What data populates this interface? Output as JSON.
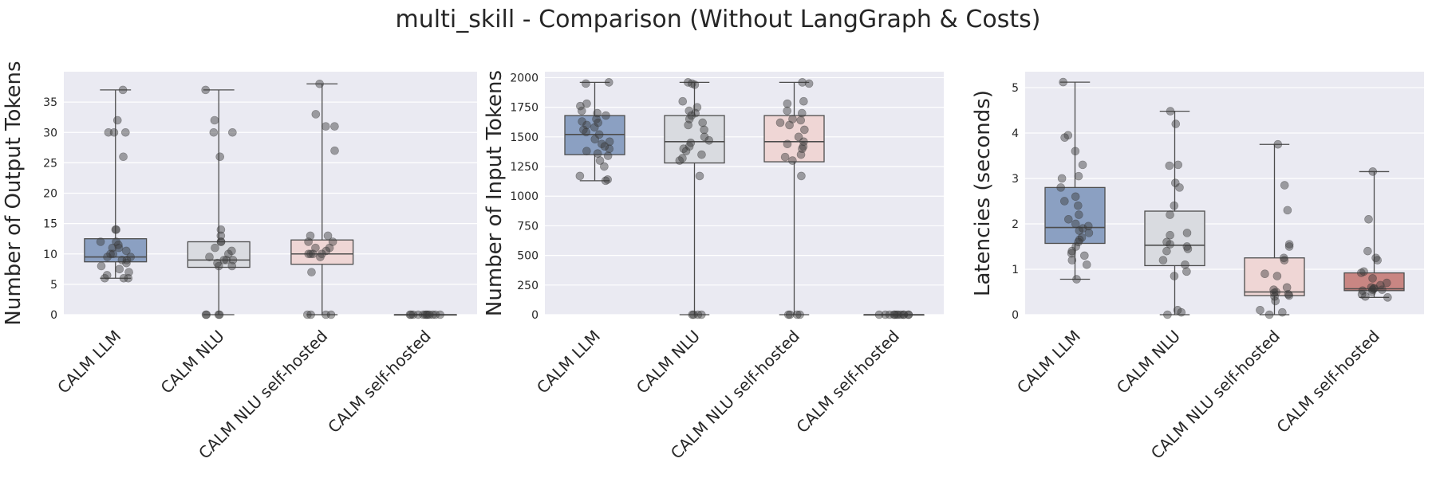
{
  "chart_data": {
    "title": "multi_skill - Comparison (Without LangGraph & Costs)",
    "categories": [
      "CALM LLM",
      "CALM NLU",
      "CALM NLU self-hosted",
      "CALM self-hosted"
    ],
    "colors": [
      "#8ba0c2",
      "#d9dbe0",
      "#efd6d5",
      "#c98683"
    ],
    "subplots": [
      {
        "type": "box",
        "ylabel": "Number of Output Tokens",
        "ylim": [
          0,
          40
        ],
        "yticks": [
          0,
          5,
          10,
          15,
          20,
          25,
          30,
          35
        ],
        "boxes": [
          {
            "q1": 8.7,
            "median": 9.5,
            "q3": 12.5,
            "whislo": 6,
            "whishi": 37
          },
          {
            "q1": 7.8,
            "median": 9,
            "q3": 12,
            "whislo": 0,
            "whishi": 37
          },
          {
            "q1": 8.3,
            "median": 10,
            "q3": 12.3,
            "whislo": 0,
            "whishi": 38
          },
          {
            "q1": 0,
            "median": 0,
            "q3": 0,
            "whislo": 0,
            "whishi": 0
          }
        ],
        "points": [
          [
            37,
            32,
            30,
            30,
            30,
            26,
            14,
            14,
            12,
            12,
            11.5,
            11,
            11,
            10.5,
            10,
            10,
            9.5,
            9.5,
            9,
            9,
            8.5,
            8,
            7.5,
            7,
            6.5,
            6,
            6,
            6
          ],
          [
            37,
            32,
            30,
            30,
            26,
            14,
            13,
            12,
            12,
            11,
            10.5,
            10,
            9.5,
            9,
            9,
            9,
            8.5,
            8,
            8,
            0,
            0,
            0,
            0
          ],
          [
            38,
            33,
            31,
            31,
            27,
            13,
            13,
            12,
            12,
            11,
            11,
            10.5,
            10,
            10,
            10,
            10,
            9.5,
            7,
            0,
            0,
            0,
            0
          ],
          [
            0,
            0,
            0,
            0,
            0,
            0,
            0,
            0,
            0,
            0,
            0,
            0
          ]
        ]
      },
      {
        "type": "box",
        "ylabel": "Number of Input Tokens",
        "ylim": [
          0,
          2050
        ],
        "yticks": [
          0,
          250,
          500,
          750,
          1000,
          1250,
          1500,
          1750,
          2000
        ],
        "boxes": [
          {
            "q1": 1350,
            "median": 1520,
            "q3": 1680,
            "whislo": 1130,
            "whishi": 1960
          },
          {
            "q1": 1280,
            "median": 1460,
            "q3": 1680,
            "whislo": 0,
            "whishi": 1960
          },
          {
            "q1": 1290,
            "median": 1460,
            "q3": 1680,
            "whislo": 0,
            "whishi": 1960
          },
          {
            "q1": 0,
            "median": 0,
            "q3": 0,
            "whislo": 0,
            "whishi": 0
          }
        ],
        "points": [
          [
            1960,
            1950,
            1780,
            1760,
            1720,
            1700,
            1680,
            1650,
            1630,
            1620,
            1600,
            1580,
            1560,
            1540,
            1520,
            1480,
            1460,
            1440,
            1420,
            1400,
            1380,
            1360,
            1340,
            1300,
            1250,
            1170,
            1140,
            1130
          ],
          [
            1960,
            1950,
            1940,
            1800,
            1750,
            1720,
            1700,
            1680,
            1650,
            1620,
            1600,
            1560,
            1500,
            1470,
            1450,
            1420,
            1400,
            1380,
            1350,
            1320,
            1300,
            1170,
            0,
            0,
            0,
            0
          ],
          [
            1960,
            1950,
            1800,
            1780,
            1720,
            1700,
            1650,
            1640,
            1620,
            1600,
            1560,
            1500,
            1460,
            1440,
            1420,
            1400,
            1350,
            1330,
            1300,
            1170,
            0,
            0,
            0,
            0
          ],
          [
            0,
            0,
            0,
            0,
            0,
            0,
            0,
            0,
            0,
            0,
            0,
            0
          ]
        ]
      },
      {
        "type": "box",
        "ylabel": "Latencies (seconds)",
        "ylim": [
          0,
          5.35
        ],
        "yticks": [
          0,
          1,
          2,
          3,
          4,
          5
        ],
        "boxes": [
          {
            "q1": 1.57,
            "median": 1.92,
            "q3": 2.8,
            "whislo": 0.78,
            "whishi": 5.12
          },
          {
            "q1": 1.08,
            "median": 1.53,
            "q3": 2.28,
            "whislo": 0,
            "whishi": 4.48
          },
          {
            "q1": 0.42,
            "median": 0.5,
            "q3": 1.25,
            "whislo": 0,
            "whishi": 3.75
          },
          {
            "q1": 0.53,
            "median": 0.57,
            "q3": 0.92,
            "whislo": 0.38,
            "whishi": 3.15
          }
        ],
        "points": [
          [
            5.12,
            3.95,
            3.9,
            3.6,
            3.3,
            3.05,
            3.0,
            2.8,
            2.6,
            2.5,
            2.4,
            2.2,
            2.1,
            2.0,
            1.95,
            1.9,
            1.85,
            1.8,
            1.7,
            1.65,
            1.6,
            1.5,
            1.4,
            1.35,
            1.3,
            1.2,
            1.1,
            0.78
          ],
          [
            4.48,
            4.2,
            3.3,
            3.28,
            2.9,
            2.8,
            2.4,
            2.2,
            1.8,
            1.75,
            1.6,
            1.55,
            1.5,
            1.45,
            1.4,
            1.2,
            1.1,
            0.95,
            0.85,
            0.1,
            0.05,
            0.0
          ],
          [
            3.75,
            2.85,
            2.3,
            1.55,
            1.5,
            1.25,
            1.2,
            0.9,
            0.85,
            0.6,
            0.55,
            0.5,
            0.48,
            0.45,
            0.42,
            0.4,
            0.3,
            0.1,
            0.05,
            0.0
          ],
          [
            3.15,
            2.1,
            1.4,
            1.25,
            1.2,
            0.95,
            0.92,
            0.8,
            0.7,
            0.65,
            0.6,
            0.58,
            0.57,
            0.55,
            0.55,
            0.53,
            0.5,
            0.45,
            0.4,
            0.38
          ]
        ]
      }
    ]
  }
}
